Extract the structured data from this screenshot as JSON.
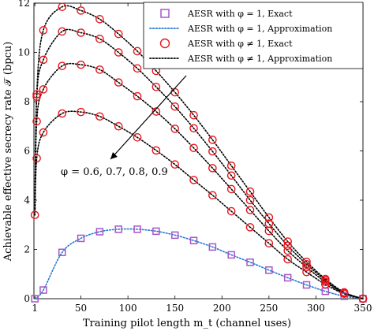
{
  "chart_data": {
    "type": "line",
    "xlabel": "Training pilot length m_t (channel uses)",
    "ylabel": "Achievable effective secrecy rate 𝒯 (bpcu)",
    "xlim": [
      0,
      350
    ],
    "ylim": [
      0,
      12
    ],
    "x_ticks": [
      1,
      50,
      100,
      150,
      200,
      250,
      300,
      350
    ],
    "y_ticks": [
      0,
      2,
      4,
      6,
      8,
      10,
      12
    ],
    "grid": false,
    "legend_position": "top-right",
    "annotation": "φ = 0.6, 0.7, 0.8, 0.9",
    "legend": [
      {
        "label": "AESR with φ = 1, Exact",
        "style": "square",
        "color": "#a855c8"
      },
      {
        "label": "AESR with φ = 1, Approximation",
        "style": "dotted",
        "color": "#1f77d4"
      },
      {
        "label": "AESR with φ ≠ 1, Exact",
        "style": "circle",
        "color": "#e8151b"
      },
      {
        "label": "AESR with φ ≠ 1, Approximation",
        "style": "dotted",
        "color": "#000000"
      }
    ],
    "series": [
      {
        "name": "AESR with φ = 1",
        "marker": "square",
        "marker_color": "#a855c8",
        "line_color": "#1f77d4",
        "x": [
          1,
          10,
          30,
          50,
          70,
          90,
          110,
          130,
          150,
          170,
          190,
          210,
          230,
          250,
          270,
          290,
          310,
          330,
          350
        ],
        "y": [
          0.0,
          0.35,
          1.88,
          2.45,
          2.72,
          2.82,
          2.82,
          2.74,
          2.58,
          2.36,
          2.1,
          1.78,
          1.48,
          1.16,
          0.85,
          0.56,
          0.3,
          0.1,
          0.0
        ]
      },
      {
        "name": "AESR with φ ≠ 1 (0.6)",
        "marker": "circle",
        "marker_color": "#e8151b",
        "line_color": "#000000",
        "x": [
          1,
          3,
          10,
          30,
          50,
          70,
          90,
          110,
          130,
          150,
          170,
          190,
          210,
          230,
          250,
          270,
          290,
          310,
          330,
          350
        ],
        "y": [
          3.4,
          5.7,
          6.75,
          7.52,
          7.58,
          7.4,
          7.0,
          6.55,
          6.02,
          5.45,
          4.82,
          4.2,
          3.55,
          2.9,
          2.25,
          1.6,
          1.08,
          0.58,
          0.2,
          0.0
        ]
      },
      {
        "name": "AESR with φ ≠ 1 (0.7)",
        "marker": "circle",
        "marker_color": "#e8151b",
        "line_color": "#000000",
        "x": [
          1,
          3,
          10,
          30,
          50,
          70,
          90,
          110,
          130,
          150,
          170,
          190,
          210,
          230,
          250,
          270,
          290,
          310,
          330,
          350
        ],
        "y": [
          3.4,
          7.2,
          8.5,
          9.45,
          9.5,
          9.3,
          8.78,
          8.22,
          7.6,
          6.9,
          6.12,
          5.3,
          4.45,
          3.6,
          2.75,
          1.95,
          1.28,
          0.68,
          0.22,
          0.0
        ]
      },
      {
        "name": "AESR with φ ≠ 1 (0.8)",
        "marker": "circle",
        "marker_color": "#e8151b",
        "line_color": "#000000",
        "x": [
          1,
          3,
          10,
          30,
          50,
          70,
          90,
          110,
          130,
          150,
          170,
          190,
          210,
          230,
          250,
          270,
          290,
          310,
          330,
          350
        ],
        "y": [
          3.4,
          8.2,
          9.7,
          10.85,
          10.8,
          10.55,
          10.0,
          9.35,
          8.6,
          7.8,
          6.92,
          5.98,
          5.0,
          4.0,
          3.05,
          2.15,
          1.4,
          0.75,
          0.24,
          0.0
        ]
      },
      {
        "name": "AESR with φ ≠ 1 (0.9)",
        "marker": "circle",
        "marker_color": "#e8151b",
        "line_color": "#000000",
        "x": [
          1,
          3,
          10,
          30,
          50,
          70,
          90,
          110,
          130,
          150,
          170,
          190,
          210,
          230,
          250,
          270,
          290,
          310,
          330,
          350
        ],
        "y": [
          3.4,
          8.3,
          10.9,
          11.85,
          11.7,
          11.35,
          10.75,
          10.05,
          9.25,
          8.38,
          7.45,
          6.45,
          5.4,
          4.35,
          3.3,
          2.32,
          1.5,
          0.8,
          0.26,
          0.0
        ]
      }
    ]
  }
}
